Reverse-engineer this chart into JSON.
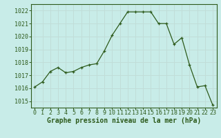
{
  "x": [
    0,
    1,
    2,
    3,
    4,
    5,
    6,
    7,
    8,
    9,
    10,
    11,
    12,
    13,
    14,
    15,
    16,
    17,
    18,
    19,
    20,
    21,
    22,
    23
  ],
  "y": [
    1016.1,
    1016.5,
    1017.3,
    1017.6,
    1017.2,
    1017.3,
    1017.6,
    1017.8,
    1017.9,
    1018.9,
    1020.1,
    1021.0,
    1021.9,
    1021.9,
    1021.9,
    1021.9,
    1021.0,
    1021.0,
    1019.4,
    1019.9,
    1017.8,
    1016.1,
    1016.2,
    1014.7
  ],
  "line_color": "#2d5a1b",
  "marker": "+",
  "bg_color": "#c8ece8",
  "grid_color": "#c0ddd8",
  "xlabel": "Graphe pression niveau de la mer (hPa)",
  "ylim": [
    1014.5,
    1022.5
  ],
  "yticks": [
    1015,
    1016,
    1017,
    1018,
    1019,
    1020,
    1021,
    1022
  ],
  "xticks": [
    0,
    1,
    2,
    3,
    4,
    5,
    6,
    7,
    8,
    9,
    10,
    11,
    12,
    13,
    14,
    15,
    16,
    17,
    18,
    19,
    20,
    21,
    22,
    23
  ],
  "tick_color": "#2d5a1b",
  "label_fontsize": 6.0,
  "xlabel_fontsize": 7.0,
  "spine_color": "#2d5a1b"
}
